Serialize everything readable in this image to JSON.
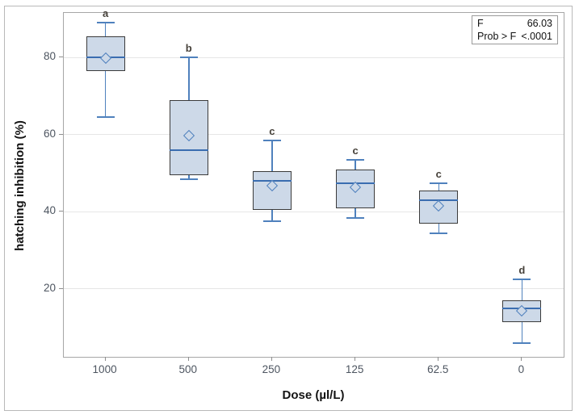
{
  "figure": {
    "y_axis_title": "hatching inhibition (%)",
    "x_axis_title": "Dose (µl/L)",
    "stats_box": {
      "rows": [
        {
          "label": "F",
          "value": "66.03"
        },
        {
          "label": "Prob > F",
          "value": "<.0001"
        }
      ]
    }
  },
  "chart_data": {
    "type": "box",
    "title": "",
    "xlabel": "Dose (µl/L)",
    "ylabel": "hatching inhibition (%)",
    "ylim": [
      2.4,
      91.6
    ],
    "y_ticks": [
      20,
      40,
      60,
      80
    ],
    "grid": "horizontal",
    "categories": [
      "1000",
      "500",
      "250",
      "125",
      "62.5",
      "0"
    ],
    "groups": [
      {
        "dose": "1000",
        "letter": "a",
        "whisker_low": 64.5,
        "q1": 76.5,
        "median": 80,
        "mean": 79.8,
        "q3": 85.5,
        "whisker_high": 89
      },
      {
        "dose": "500",
        "letter": "b",
        "whisker_low": 48.5,
        "q1": 49.5,
        "median": 56,
        "mean": 59.7,
        "q3": 69,
        "whisker_high": 80
      },
      {
        "dose": "250",
        "letter": "c",
        "whisker_low": 37.5,
        "q1": 40.5,
        "median": 48,
        "mean": 46.7,
        "q3": 50.5,
        "whisker_high": 58.5
      },
      {
        "dose": "125",
        "letter": "c",
        "whisker_low": 38.5,
        "q1": 41,
        "median": 47.5,
        "mean": 46.3,
        "q3": 51,
        "whisker_high": 53.5
      },
      {
        "dose": "62.5",
        "letter": "c",
        "whisker_low": 34.5,
        "q1": 37,
        "median": 43,
        "mean": 41.5,
        "q3": 45.5,
        "whisker_high": 47.5
      },
      {
        "dose": "0",
        "letter": "d",
        "whisker_low": 6,
        "q1": 11.3,
        "median": 15,
        "mean": 14.4,
        "q3": 17,
        "whisker_high": 22.5
      }
    ],
    "annotations": {
      "F": "66.03",
      "Prob > F": "<.0001"
    },
    "colors": {
      "box_fill": "#cdd9e8",
      "box_border": "#3b3b3b",
      "whisker": "#4f81bd",
      "median": "#3a6db0",
      "gridline": "#e6e6e6",
      "plot_border": "#a6a6a6",
      "tick_label": "#4d5560",
      "letter": "#46413a"
    }
  }
}
